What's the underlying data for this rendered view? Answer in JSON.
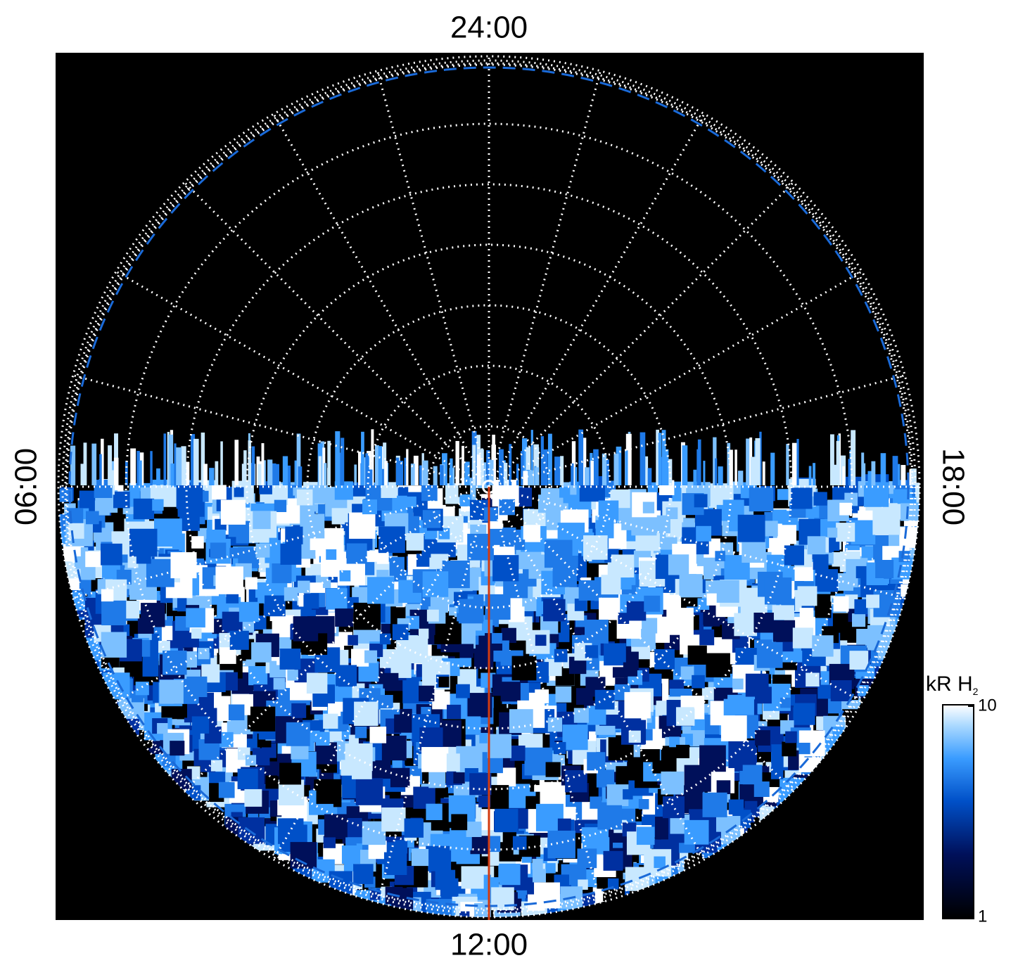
{
  "labels": {
    "top": "24:00",
    "bottom": "12:00",
    "left": "06:00",
    "right": "18:00"
  },
  "colorbar": {
    "title": "kR H",
    "title_subscript": "2",
    "scale": "log",
    "lim": [
      1,
      10
    ],
    "ticks": [
      1,
      10
    ]
  }
}
